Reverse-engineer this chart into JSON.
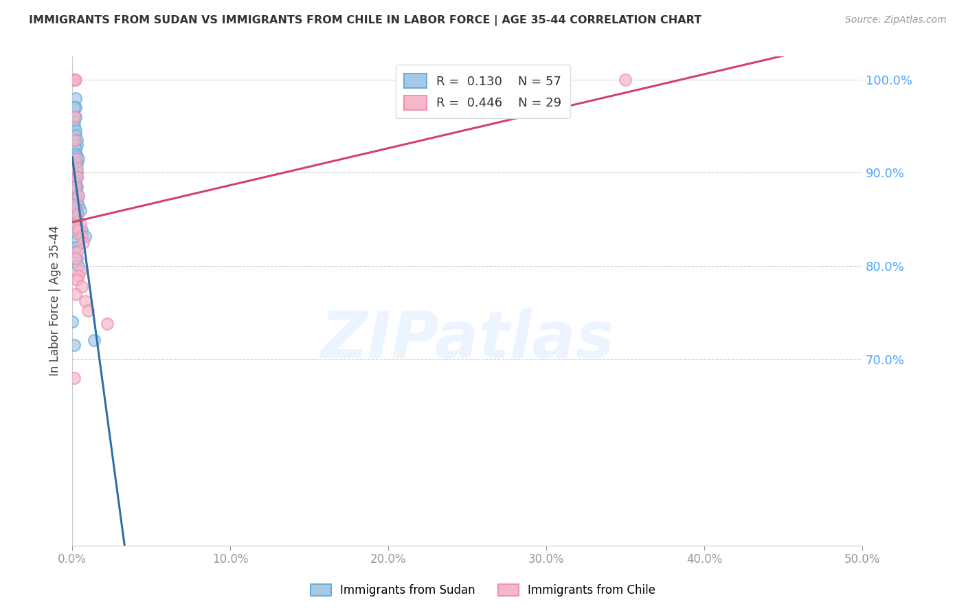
{
  "title": "IMMIGRANTS FROM SUDAN VS IMMIGRANTS FROM CHILE IN LABOR FORCE | AGE 35-44 CORRELATION CHART",
  "source": "Source: ZipAtlas.com",
  "ylabel": "In Labor Force | Age 35-44",
  "x_min": 0.0,
  "x_max": 0.5,
  "y_min": 0.5,
  "y_max": 1.025,
  "x_tick_labels": [
    "0.0%",
    "10.0%",
    "20.0%",
    "30.0%",
    "40.0%",
    "50.0%"
  ],
  "x_tick_vals": [
    0.0,
    0.1,
    0.2,
    0.3,
    0.4,
    0.5
  ],
  "y_tick_labels": [
    "100.0%",
    "90.0%",
    "80.0%",
    "70.0%"
  ],
  "y_tick_vals": [
    1.0,
    0.9,
    0.8,
    0.7
  ],
  "legend_blue_r": "0.130",
  "legend_blue_n": "57",
  "legend_pink_r": "0.446",
  "legend_pink_n": "29",
  "legend_label_blue": "Immigrants from Sudan",
  "legend_label_pink": "Immigrants from Chile",
  "blue_scatter_color": "#a8c8e8",
  "pink_scatter_color": "#f4b8c8",
  "blue_edge_color": "#6baed6",
  "pink_edge_color": "#f48fb1",
  "blue_line_color": "#2c6fad",
  "pink_line_color": "#d44070",
  "dashed_line_color": "#b0c8e8",
  "watermark_text": "ZIPatlas",
  "grid_color": "#cccccc",
  "sudan_x": [
    0.0,
    0.001,
    0.001,
    0.002,
    0.002,
    0.002,
    0.001,
    0.001,
    0.001,
    0.002,
    0.002,
    0.003,
    0.003,
    0.001,
    0.002,
    0.002,
    0.003,
    0.004,
    0.002,
    0.003,
    0.001,
    0.002,
    0.003,
    0.001,
    0.003,
    0.002,
    0.001,
    0.002,
    0.003,
    0.002,
    0.002,
    0.003,
    0.004,
    0.002,
    0.001,
    0.003,
    0.004,
    0.002,
    0.005,
    0.003,
    0.002,
    0.003,
    0.003,
    0.001,
    0.002,
    0.003,
    0.006,
    0.002,
    0.008,
    0.003,
    0.002,
    0.001,
    0.003,
    0.004,
    0.0,
    0.014,
    0.001
  ],
  "sudan_y": [
    1.0,
    1.0,
    1.0,
    0.98,
    0.97,
    0.96,
    0.97,
    0.955,
    0.95,
    0.945,
    0.94,
    0.935,
    0.93,
    0.93,
    0.925,
    0.92,
    0.918,
    0.915,
    0.912,
    0.91,
    0.908,
    0.905,
    0.9,
    0.898,
    0.895,
    0.892,
    0.89,
    0.888,
    0.885,
    0.882,
    0.88,
    0.878,
    0.875,
    0.872,
    0.87,
    0.868,
    0.865,
    0.862,
    0.86,
    0.858,
    0.855,
    0.852,
    0.848,
    0.845,
    0.842,
    0.84,
    0.838,
    0.835,
    0.832,
    0.828,
    0.82,
    0.815,
    0.808,
    0.8,
    0.74,
    0.72,
    0.715
  ],
  "chile_x": [
    0.0,
    0.001,
    0.001,
    0.002,
    0.001,
    0.002,
    0.003,
    0.003,
    0.002,
    0.004,
    0.001,
    0.003,
    0.005,
    0.002,
    0.004,
    0.006,
    0.007,
    0.003,
    0.002,
    0.005,
    0.004,
    0.003,
    0.006,
    0.002,
    0.008,
    0.01,
    0.022,
    0.35,
    0.001
  ],
  "chile_y": [
    1.0,
    1.0,
    0.96,
    1.0,
    0.935,
    0.915,
    0.905,
    0.895,
    0.885,
    0.875,
    0.865,
    0.855,
    0.845,
    0.842,
    0.838,
    0.832,
    0.825,
    0.815,
    0.808,
    0.795,
    0.79,
    0.785,
    0.778,
    0.77,
    0.762,
    0.752,
    0.738,
    1.0,
    0.68
  ]
}
